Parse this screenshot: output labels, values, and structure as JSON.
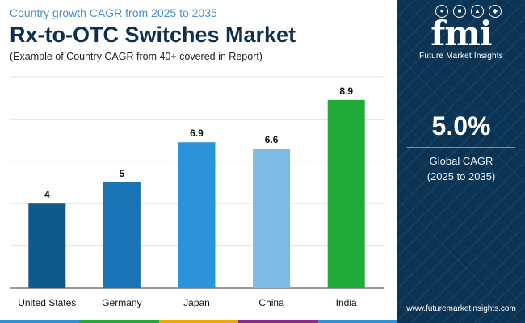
{
  "header": {
    "eyebrow": "Country growth CAGR from 2025 to 2035",
    "title": "Rx-to-OTC Switches Market",
    "subtitle": "(Example of Country CAGR from 40+ covered in Report)"
  },
  "chart_data": {
    "type": "bar",
    "categories": [
      "United States",
      "Germany",
      "Japan",
      "China",
      "India"
    ],
    "values": [
      4,
      5,
      6.9,
      6.6,
      8.9
    ],
    "value_labels": [
      "4",
      "5",
      "6.9",
      "6.6",
      "8.9"
    ],
    "colors": [
      "#0f5a8c",
      "#1a73b5",
      "#2b93d9",
      "#7cbbe4",
      "#1faa3a"
    ],
    "ylim": [
      0,
      10
    ],
    "grid": true
  },
  "sidebar": {
    "logo_letters": "fmi",
    "logo_name": "Future Market Insights",
    "big_value": "5.0%",
    "caption_line1": "Global CAGR",
    "caption_line2": "(2025 to 2035)",
    "website": "www.futuremarketinsights.com"
  },
  "colors": {
    "sidebar_bg": "#0b3454",
    "title": "#0e2f4d",
    "eyebrow": "#4a8fd0",
    "bottom_strip": [
      "#2b93d9",
      "#1faa3a",
      "#f0a500",
      "#8e2a8a",
      "#2b93d9"
    ]
  }
}
